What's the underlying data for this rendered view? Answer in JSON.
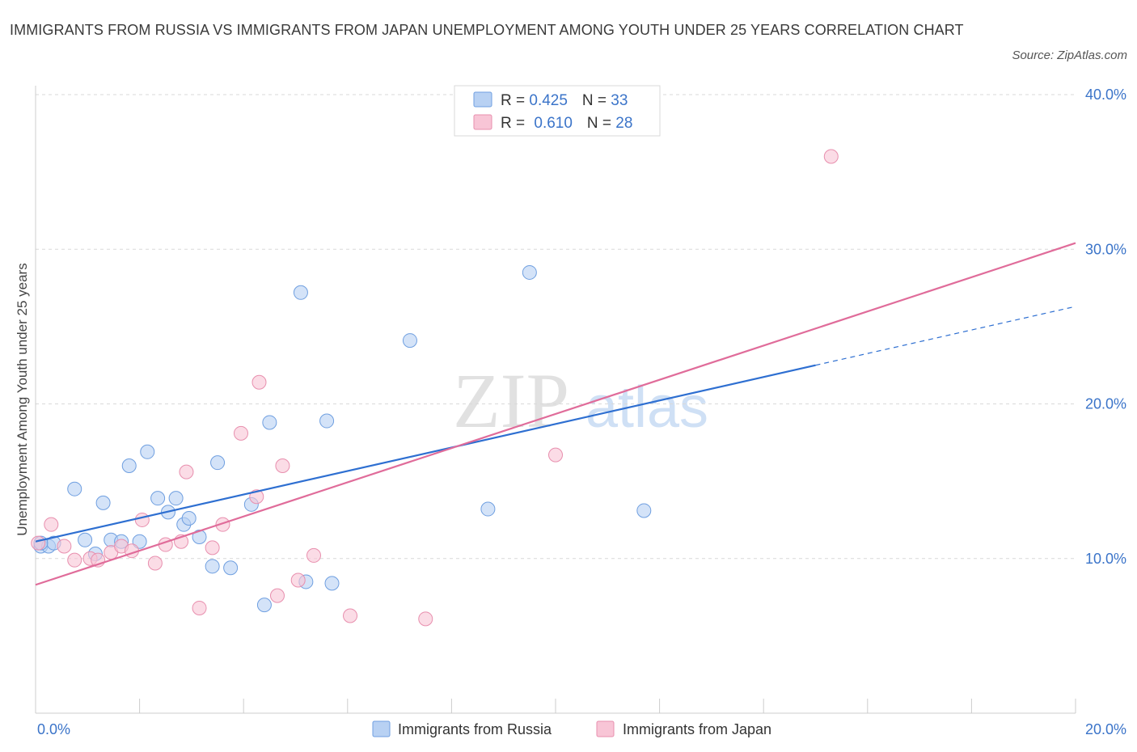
{
  "title": "IMMIGRANTS FROM RUSSIA VS IMMIGRANTS FROM JAPAN UNEMPLOYMENT AMONG YOUTH UNDER 25 YEARS CORRELATION CHART",
  "source": "Source: ZipAtlas.com",
  "watermark": {
    "zip": "ZIP",
    "atlas": "atlas"
  },
  "colors": {
    "russia_fill": "#b8d1f3",
    "russia_stroke": "#6f9fe0",
    "russia_line": "#2e6fd1",
    "japan_fill": "#f8c5d6",
    "japan_stroke": "#e88fae",
    "japan_line": "#e06c9a",
    "axis_label": "#3b74c9",
    "grid": "#d9d9d9"
  },
  "legend": {
    "rows": [
      {
        "r_label": "R = ",
        "r_value": "0.425",
        "n_label": "N = ",
        "n_value": "33"
      },
      {
        "r_label": "R = ",
        "r_value": "0.610",
        "n_label": "N = ",
        "n_value": "28"
      }
    ]
  },
  "chart_data": {
    "type": "scatter",
    "title": "IMMIGRANTS FROM RUSSIA VS IMMIGRANTS FROM JAPAN UNEMPLOYMENT AMONG YOUTH UNDER 25 YEARS CORRELATION CHART",
    "xlabel": "",
    "ylabel": "Unemployment Among Youth under 25 years",
    "xlim": [
      0,
      20
    ],
    "ylim": [
      0,
      40
    ],
    "x_tick_labels": [
      "0.0%",
      "20.0%"
    ],
    "y_tick_values": [
      10,
      20,
      30,
      40
    ],
    "y_tick_labels": [
      "10.0%",
      "20.0%",
      "30.0%",
      "40.0%"
    ],
    "grid": true,
    "legend_position": "top-center",
    "series": [
      {
        "name": "Immigrants from Russia",
        "R": 0.425,
        "N": 33,
        "trend": {
          "x0": 0,
          "y0": 11.1,
          "x1": 15.0,
          "y1": 22.5,
          "dashed_to_x": 20.0,
          "dashed_to_y": 26.3
        },
        "points": [
          {
            "x": 0.1,
            "y": 10.8
          },
          {
            "x": 0.25,
            "y": 10.8
          },
          {
            "x": 0.35,
            "y": 11.0
          },
          {
            "x": 0.75,
            "y": 14.5
          },
          {
            "x": 0.95,
            "y": 11.2
          },
          {
            "x": 1.15,
            "y": 10.3
          },
          {
            "x": 1.3,
            "y": 13.6
          },
          {
            "x": 1.45,
            "y": 11.2
          },
          {
            "x": 1.65,
            "y": 11.1
          },
          {
            "x": 1.8,
            "y": 16.0
          },
          {
            "x": 2.0,
            "y": 11.1
          },
          {
            "x": 2.15,
            "y": 16.9
          },
          {
            "x": 2.35,
            "y": 13.9
          },
          {
            "x": 2.55,
            "y": 13.0
          },
          {
            "x": 2.7,
            "y": 13.9
          },
          {
            "x": 2.85,
            "y": 12.2
          },
          {
            "x": 2.95,
            "y": 12.6
          },
          {
            "x": 3.15,
            "y": 11.4
          },
          {
            "x": 3.4,
            "y": 9.5
          },
          {
            "x": 3.5,
            "y": 16.2
          },
          {
            "x": 3.75,
            "y": 9.4
          },
          {
            "x": 4.15,
            "y": 13.5
          },
          {
            "x": 4.4,
            "y": 7.0
          },
          {
            "x": 4.5,
            "y": 18.8
          },
          {
            "x": 5.1,
            "y": 27.2
          },
          {
            "x": 5.2,
            "y": 8.5
          },
          {
            "x": 5.6,
            "y": 18.9
          },
          {
            "x": 5.7,
            "y": 8.4
          },
          {
            "x": 7.2,
            "y": 24.1
          },
          {
            "x": 8.7,
            "y": 13.2
          },
          {
            "x": 9.5,
            "y": 28.5
          },
          {
            "x": 11.7,
            "y": 13.1
          },
          {
            "x": 0.1,
            "y": 11.0
          }
        ]
      },
      {
        "name": "Immigrants from Japan",
        "R": 0.61,
        "N": 28,
        "trend": {
          "x0": 0,
          "y0": 8.3,
          "x1": 20.0,
          "y1": 30.4
        },
        "points": [
          {
            "x": 0.05,
            "y": 11.0
          },
          {
            "x": 0.3,
            "y": 12.2
          },
          {
            "x": 0.55,
            "y": 10.8
          },
          {
            "x": 0.75,
            "y": 9.9
          },
          {
            "x": 1.05,
            "y": 10.0
          },
          {
            "x": 1.2,
            "y": 9.9
          },
          {
            "x": 1.45,
            "y": 10.4
          },
          {
            "x": 1.65,
            "y": 10.8
          },
          {
            "x": 1.85,
            "y": 10.5
          },
          {
            "x": 2.05,
            "y": 12.5
          },
          {
            "x": 2.3,
            "y": 9.7
          },
          {
            "x": 2.5,
            "y": 10.9
          },
          {
            "x": 2.8,
            "y": 11.1
          },
          {
            "x": 2.9,
            "y": 15.6
          },
          {
            "x": 3.15,
            "y": 6.8
          },
          {
            "x": 3.4,
            "y": 10.7
          },
          {
            "x": 3.6,
            "y": 12.2
          },
          {
            "x": 3.95,
            "y": 18.1
          },
          {
            "x": 4.25,
            "y": 14.0
          },
          {
            "x": 4.3,
            "y": 21.4
          },
          {
            "x": 4.65,
            "y": 7.6
          },
          {
            "x": 4.75,
            "y": 16.0
          },
          {
            "x": 5.05,
            "y": 8.6
          },
          {
            "x": 5.35,
            "y": 10.2
          },
          {
            "x": 6.05,
            "y": 6.3
          },
          {
            "x": 7.5,
            "y": 6.1
          },
          {
            "x": 10.0,
            "y": 16.7
          },
          {
            "x": 15.3,
            "y": 36.0
          }
        ]
      }
    ]
  }
}
